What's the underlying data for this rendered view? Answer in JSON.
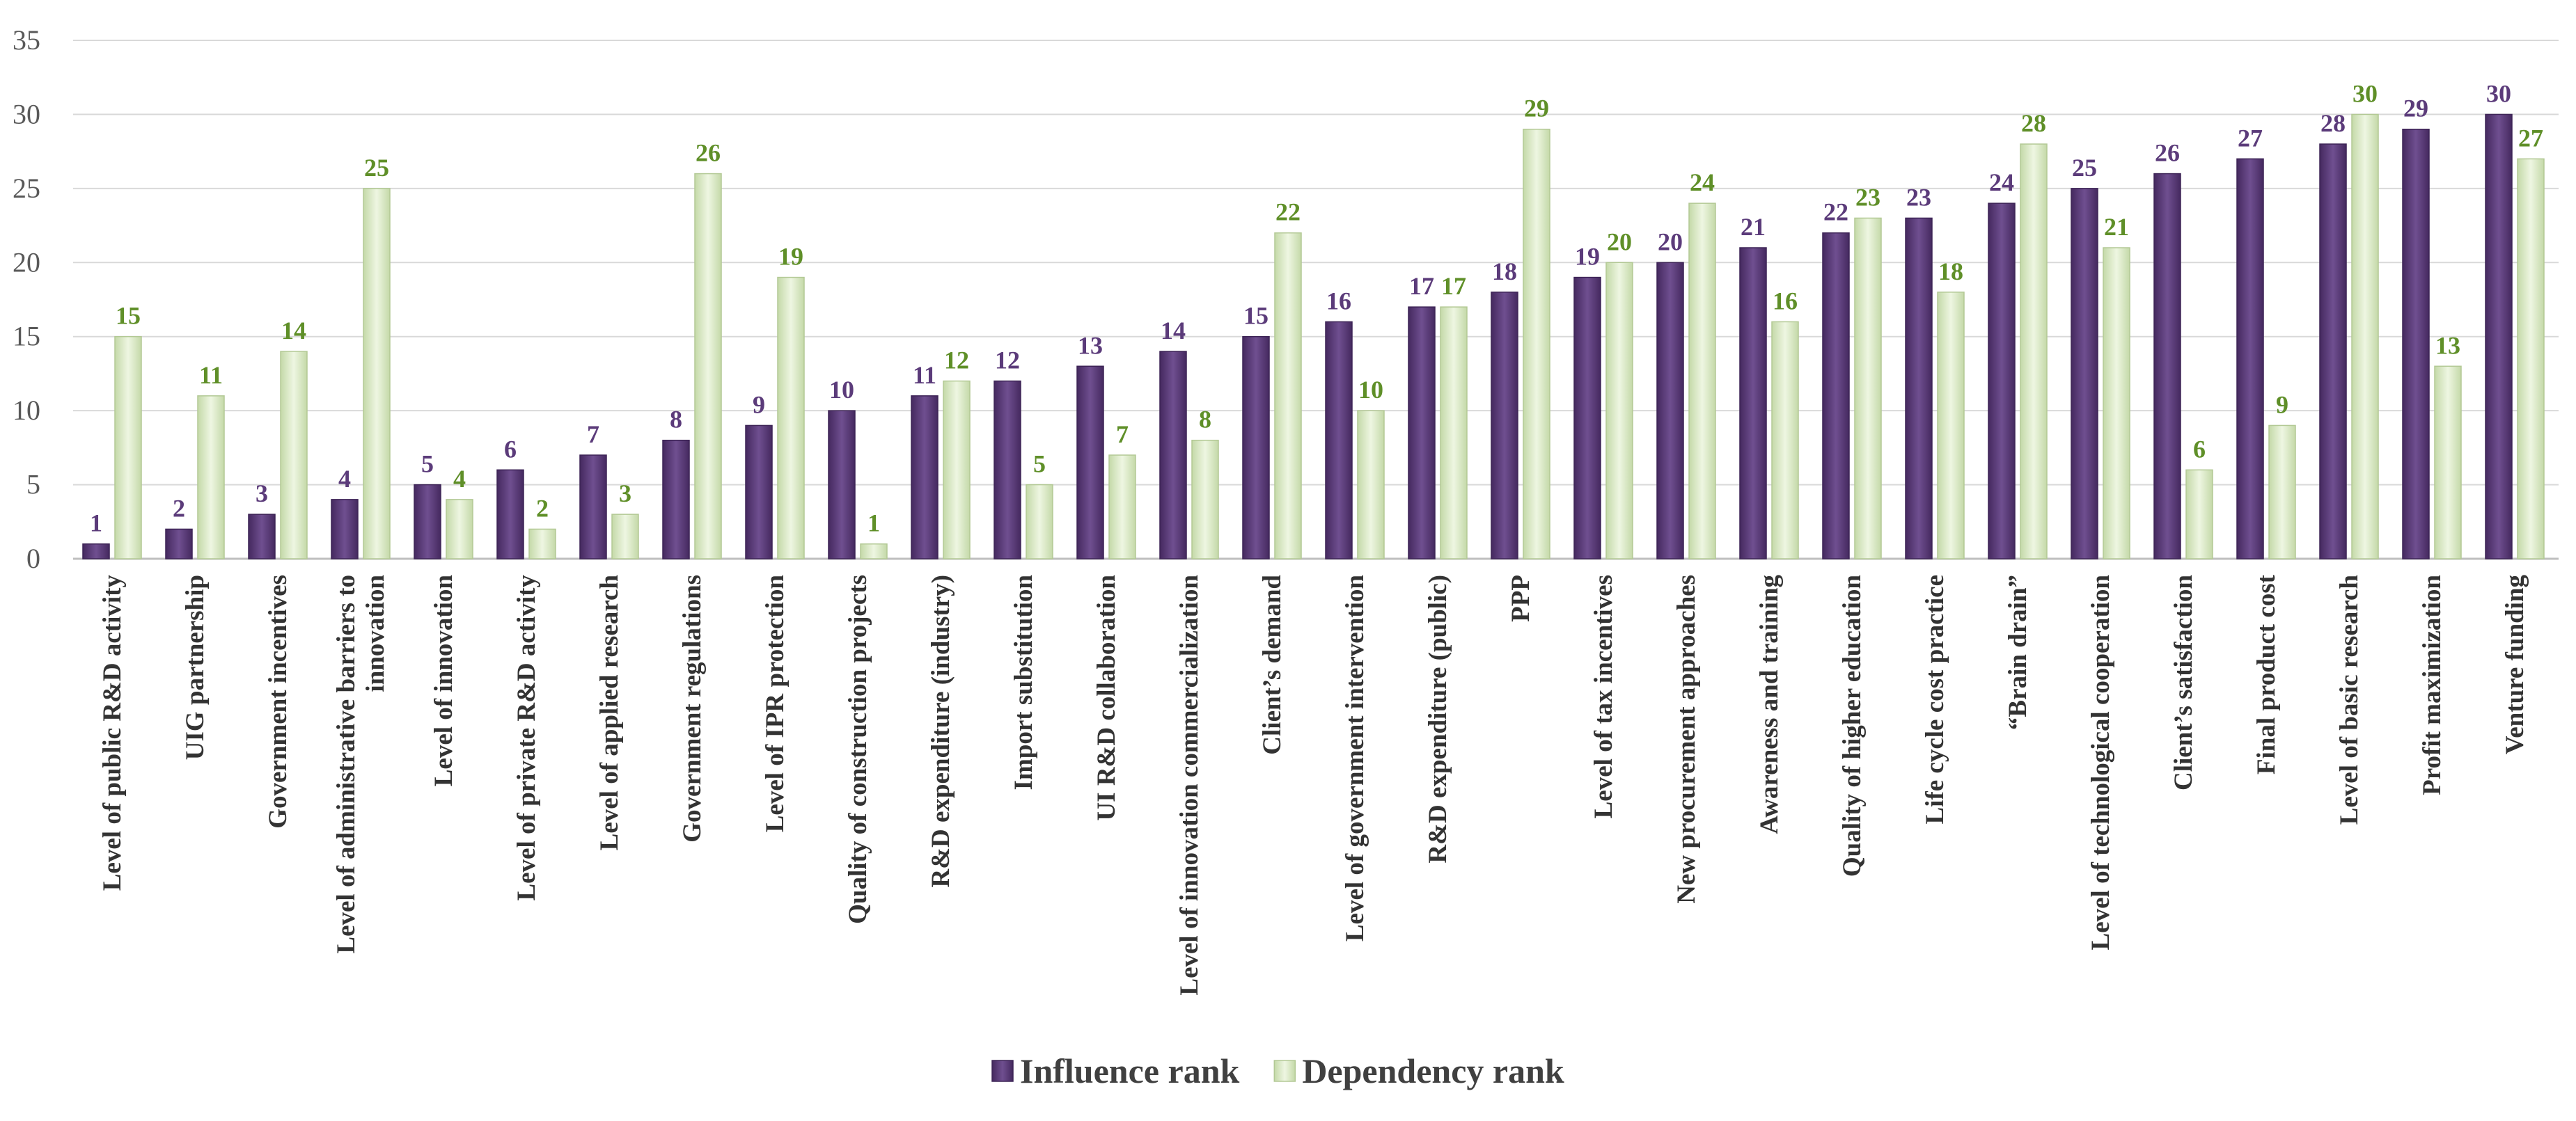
{
  "chart_data": {
    "type": "bar",
    "title": "",
    "xlabel": "",
    "ylabel": "",
    "ylim": [
      0,
      35
    ],
    "yticks": [
      0,
      5,
      10,
      15,
      20,
      25,
      30,
      35
    ],
    "grid": true,
    "legend_position": "bottom-center",
    "categories": [
      "Level of public R&D activity",
      "UIG partnership",
      "Government incentives",
      "Level of administrative barriers to innovation",
      "Level of innovation",
      "Level of private R&D activity",
      "Level of applied research",
      "Government regulations",
      "Level of IPR protection",
      "Quality of construction projects",
      "R&D expenditure (industry)",
      "Import substitution",
      "UI R&D collaboration",
      "Level of innovation commercialization",
      "Client’s demand",
      "Level of government intervention",
      "R&D expenditure (public)",
      "PPP",
      "Level of tax incentives",
      "New procurement approaches",
      "Awareness and training",
      "Quality of higher education",
      "Life cycle cost practice",
      "“Brain drain”",
      "Level of technological cooperation",
      "Client’s satisfaction",
      "Final product cost",
      "Level of basic research",
      "Profit maximization",
      "Venture funding"
    ],
    "series": [
      {
        "name": "Influence rank",
        "color": "#5b3b7a",
        "label_color": "#5b3b7a",
        "values": [
          1,
          2,
          3,
          4,
          5,
          6,
          7,
          8,
          9,
          10,
          11,
          12,
          13,
          14,
          15,
          16,
          17,
          18,
          19,
          20,
          21,
          22,
          23,
          24,
          25,
          26,
          27,
          28,
          29,
          30
        ]
      },
      {
        "name": "Dependency rank",
        "color": "#d4e6bd",
        "label_color": "#5f8f28",
        "values": [
          15,
          11,
          14,
          25,
          4,
          2,
          3,
          26,
          19,
          1,
          12,
          5,
          7,
          8,
          22,
          10,
          17,
          29,
          20,
          24,
          16,
          23,
          18,
          28,
          21,
          6,
          9,
          30,
          13,
          27
        ]
      }
    ]
  }
}
